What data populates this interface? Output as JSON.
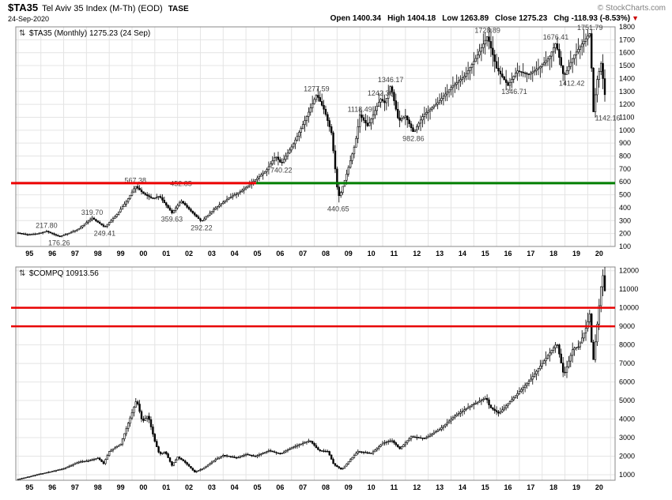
{
  "header": {
    "symbol": "$TA35",
    "name": "Tel Aviv 35 Index (M-Th) (EOD)",
    "exchange": "TASE",
    "credit": "© StockCharts.com",
    "date": "24-Sep-2020"
  },
  "quote": {
    "open_label": "Open",
    "open": "1400.34",
    "high_label": "High",
    "high": "1404.18",
    "low_label": "Low",
    "low": "1263.89",
    "close_label": "Close",
    "close": "1275.23",
    "chg_label": "Chg",
    "chg": "-118.93 (-8.53%)",
    "direction_icon": "▼"
  },
  "chart_data": [
    {
      "type": "candlestick",
      "symbol": "$TA35",
      "timeframe": "Monthly",
      "legend_icon": "⇅",
      "legend": "$TA35 (Monthly) 1275.23 (24 Sep)",
      "last_close": 1275.23,
      "x_domain": [
        1994.9,
        2021.2
      ],
      "y_domain": [
        100,
        1800
      ],
      "y_ticks": [
        1800,
        1700,
        1600,
        1500,
        1400,
        1300,
        1200,
        1100,
        1000,
        900,
        800,
        700,
        600,
        500,
        400,
        300,
        200,
        100
      ],
      "x_start_year": 1995,
      "x_tick_labels": [
        "95",
        "96",
        "97",
        "98",
        "99",
        "00",
        "01",
        "02",
        "03",
        "04",
        "05",
        "06",
        "07",
        "08",
        "09",
        "10",
        "11",
        "12",
        "13",
        "14",
        "15",
        "16",
        "17",
        "18",
        "19",
        "20"
      ],
      "grid": true,
      "seed": 5,
      "volatility": 0.08,
      "bars_start": 1995.0,
      "bars_end": 2020.75,
      "keypoints": [
        [
          1995.0,
          205
        ],
        [
          1995.4,
          190
        ],
        [
          1995.9,
          200
        ],
        [
          1996.25,
          217.8
        ],
        [
          1996.8,
          176.26
        ],
        [
          1997.2,
          200
        ],
        [
          1997.6,
          230
        ],
        [
          1998.25,
          319.7
        ],
        [
          1998.8,
          249.41
        ],
        [
          1999.3,
          340
        ],
        [
          1999.8,
          460
        ],
        [
          2000.15,
          567.38
        ],
        [
          2000.5,
          510
        ],
        [
          2000.9,
          470
        ],
        [
          2001.2,
          490
        ],
        [
          2001.75,
          359.63
        ],
        [
          2002.15,
          452.85
        ],
        [
          2002.6,
          370
        ],
        [
          2003.05,
          292.22
        ],
        [
          2003.6,
          390
        ],
        [
          2004.2,
          470
        ],
        [
          2004.8,
          530
        ],
        [
          2005.3,
          600
        ],
        [
          2005.9,
          690
        ],
        [
          2006.3,
          800
        ],
        [
          2006.55,
          740.22
        ],
        [
          2007.1,
          900
        ],
        [
          2007.6,
          1080
        ],
        [
          2008.1,
          1277.59
        ],
        [
          2008.45,
          1150
        ],
        [
          2008.75,
          980
        ],
        [
          2009.0,
          560
        ],
        [
          2009.1,
          480
        ],
        [
          2009.4,
          650
        ],
        [
          2009.8,
          900
        ],
        [
          2010.0,
          1118.49
        ],
        [
          2010.35,
          1030
        ],
        [
          2010.9,
          1242.39
        ],
        [
          2011.1,
          1210
        ],
        [
          2011.35,
          1346.17
        ],
        [
          2011.7,
          1070
        ],
        [
          2012.0,
          1110
        ],
        [
          2012.35,
          982.86
        ],
        [
          2012.8,
          1120
        ],
        [
          2013.4,
          1210
        ],
        [
          2014.0,
          1330
        ],
        [
          2014.6,
          1420
        ],
        [
          2015.1,
          1560
        ],
        [
          2015.6,
          1728.89
        ],
        [
          2016.0,
          1480
        ],
        [
          2016.5,
          1346.71
        ],
        [
          2016.9,
          1460
        ],
        [
          2017.4,
          1430
        ],
        [
          2017.9,
          1490
        ],
        [
          2018.3,
          1560
        ],
        [
          2018.6,
          1676.41
        ],
        [
          2018.95,
          1412.42
        ],
        [
          2019.4,
          1580
        ],
        [
          2019.8,
          1680
        ],
        [
          2020.1,
          1751.79
        ],
        [
          2020.25,
          1142.16
        ],
        [
          2020.4,
          1380
        ],
        [
          2020.6,
          1530
        ],
        [
          2020.73,
          1275.23
        ]
      ],
      "spikes": [
        {
          "x": 2000.15,
          "high": 567.38
        },
        {
          "x": 2008.1,
          "high": 1277.59
        },
        {
          "x": 2009.05,
          "low": 440.65
        },
        {
          "x": 2011.35,
          "high": 1346.17
        },
        {
          "x": 2015.6,
          "high": 1728.89
        },
        {
          "x": 2018.6,
          "high": 1676.41
        },
        {
          "x": 2020.1,
          "high": 1751.79
        },
        {
          "x": 2020.25,
          "low": 1142.16
        }
      ],
      "annotations": [
        {
          "x": 1996.25,
          "y": 217.8,
          "text": "217.80",
          "pos": "above"
        },
        {
          "x": 1996.8,
          "y": 176.26,
          "text": "176.26",
          "pos": "below"
        },
        {
          "x": 1998.25,
          "y": 319.7,
          "text": "319.70",
          "pos": "above"
        },
        {
          "x": 1998.8,
          "y": 249.41,
          "text": "249.41",
          "pos": "below"
        },
        {
          "x": 2000.15,
          "y": 567.38,
          "text": "567.38",
          "pos": "above"
        },
        {
          "x": 2002.15,
          "y": 452.85,
          "text": "452.85",
          "pos": "above",
          "dy": -15
        },
        {
          "x": 2001.75,
          "y": 359.63,
          "text": "359.63",
          "pos": "below"
        },
        {
          "x": 2003.05,
          "y": 292.22,
          "text": "292.22",
          "pos": "below"
        },
        {
          "x": 2006.55,
          "y": 740.22,
          "text": "740.22",
          "pos": "below"
        },
        {
          "x": 2008.1,
          "y": 1277.59,
          "text": "1277.59",
          "pos": "above"
        },
        {
          "x": 2010.0,
          "y": 1118.49,
          "text": "1118.49",
          "pos": "above"
        },
        {
          "x": 2009.05,
          "y": 440.65,
          "text": "440.65",
          "pos": "below"
        },
        {
          "x": 2010.9,
          "y": 1242.39,
          "text": "1242.39",
          "pos": "above"
        },
        {
          "x": 2011.35,
          "y": 1346.17,
          "text": "1346.17",
          "pos": "above"
        },
        {
          "x": 2012.35,
          "y": 982.86,
          "text": "982.86",
          "pos": "below"
        },
        {
          "x": 2015.6,
          "y": 1728.89,
          "text": "1728.89",
          "pos": "above"
        },
        {
          "x": 2016.5,
          "y": 1346.71,
          "text": "1346.71",
          "pos": "below",
          "dx": 8
        },
        {
          "x": 2018.6,
          "y": 1676.41,
          "text": "1676.41",
          "pos": "above"
        },
        {
          "x": 2018.95,
          "y": 1412.42,
          "text": "1412.42",
          "pos": "below",
          "dx": 10
        },
        {
          "x": 2020.1,
          "y": 1751.79,
          "text": "1751.79",
          "pos": "above"
        },
        {
          "x": 2020.25,
          "y": 1142.16,
          "text": "1142.16",
          "pos": "below",
          "dx": 18
        }
      ],
      "hlines": [
        {
          "y": 590,
          "x1": 1990.0,
          "x2": 2005.45,
          "color": "#ee0000",
          "width": 3
        },
        {
          "y": 590,
          "x1": 2005.45,
          "x2": 2021.2,
          "color": "#008000",
          "width": 3
        }
      ]
    },
    {
      "type": "candlestick",
      "symbol": "$COMPQ",
      "timeframe": "Monthly",
      "legend_icon": "⇅",
      "legend": "$COMPQ 10913.56",
      "last_close": 10913.56,
      "x_domain": [
        1994.9,
        2021.2
      ],
      "y_domain": [
        700,
        12200
      ],
      "y_ticks": [
        12000,
        11000,
        10000,
        9000,
        8000,
        7000,
        6000,
        5000,
        4000,
        3000,
        2000,
        1000
      ],
      "x_start_year": 1995,
      "x_tick_labels": [
        "95",
        "96",
        "97",
        "98",
        "99",
        "00",
        "01",
        "02",
        "03",
        "04",
        "05",
        "06",
        "07",
        "08",
        "09",
        "10",
        "11",
        "12",
        "13",
        "14",
        "15",
        "16",
        "17",
        "18",
        "19",
        "20"
      ],
      "grid": true,
      "seed": 9,
      "volatility": 0.07,
      "bars_start": 1995.0,
      "bars_end": 2020.75,
      "keypoints": [
        [
          1995.0,
          755
        ],
        [
          1995.5,
          900
        ],
        [
          1996.0,
          1050
        ],
        [
          1996.5,
          1180
        ],
        [
          1997.0,
          1330
        ],
        [
          1997.7,
          1700
        ],
        [
          1998.1,
          1750
        ],
        [
          1998.5,
          1900
        ],
        [
          1998.75,
          1600
        ],
        [
          1999.0,
          2250
        ],
        [
          1999.5,
          2650
        ],
        [
          1999.9,
          4000
        ],
        [
          2000.2,
          5048
        ],
        [
          2000.45,
          3850
        ],
        [
          2000.7,
          4200
        ],
        [
          2001.0,
          2800
        ],
        [
          2001.2,
          2100
        ],
        [
          2001.45,
          2250
        ],
        [
          2001.75,
          1500
        ],
        [
          2002.0,
          1950
        ],
        [
          2002.3,
          1700
        ],
        [
          2002.75,
          1140
        ],
        [
          2003.1,
          1330
        ],
        [
          2003.7,
          1850
        ],
        [
          2004.0,
          2050
        ],
        [
          2004.6,
          1900
        ],
        [
          2005.0,
          2100
        ],
        [
          2005.4,
          1980
        ],
        [
          2006.0,
          2300
        ],
        [
          2006.5,
          2120
        ],
        [
          2007.0,
          2450
        ],
        [
          2007.8,
          2850
        ],
        [
          2008.2,
          2300
        ],
        [
          2008.6,
          2250
        ],
        [
          2008.85,
          1550
        ],
        [
          2009.2,
          1280
        ],
        [
          2009.9,
          2250
        ],
        [
          2010.5,
          2150
        ],
        [
          2011.0,
          2700
        ],
        [
          2011.4,
          2850
        ],
        [
          2011.75,
          2400
        ],
        [
          2012.25,
          3050
        ],
        [
          2012.85,
          2950
        ],
        [
          2013.5,
          3450
        ],
        [
          2014.2,
          4200
        ],
        [
          2014.9,
          4750
        ],
        [
          2015.55,
          5150
        ],
        [
          2015.7,
          4650
        ],
        [
          2016.1,
          4300
        ],
        [
          2016.9,
          5350
        ],
        [
          2017.5,
          6150
        ],
        [
          2018.0,
          7000
        ],
        [
          2018.65,
          8100
        ],
        [
          2018.95,
          6330
        ],
        [
          2019.35,
          7800
        ],
        [
          2019.6,
          7900
        ],
        [
          2019.95,
          9000
        ],
        [
          2020.1,
          9750
        ],
        [
          2020.22,
          6860
        ],
        [
          2020.45,
          9500
        ],
        [
          2020.65,
          11950
        ],
        [
          2020.73,
          10913.56
        ]
      ],
      "spikes": [
        {
          "x": 2000.2,
          "high": 5130
        },
        {
          "x": 2020.65,
          "high": 12070
        }
      ],
      "annotations": [],
      "hlines": [
        {
          "y": 10000,
          "x1": 1990.0,
          "x2": 2021.2,
          "color": "#e80000",
          "width": 2.5
        },
        {
          "y": 9000,
          "x1": 1990.0,
          "x2": 2021.2,
          "color": "#e80000",
          "width": 2.5
        }
      ]
    }
  ]
}
